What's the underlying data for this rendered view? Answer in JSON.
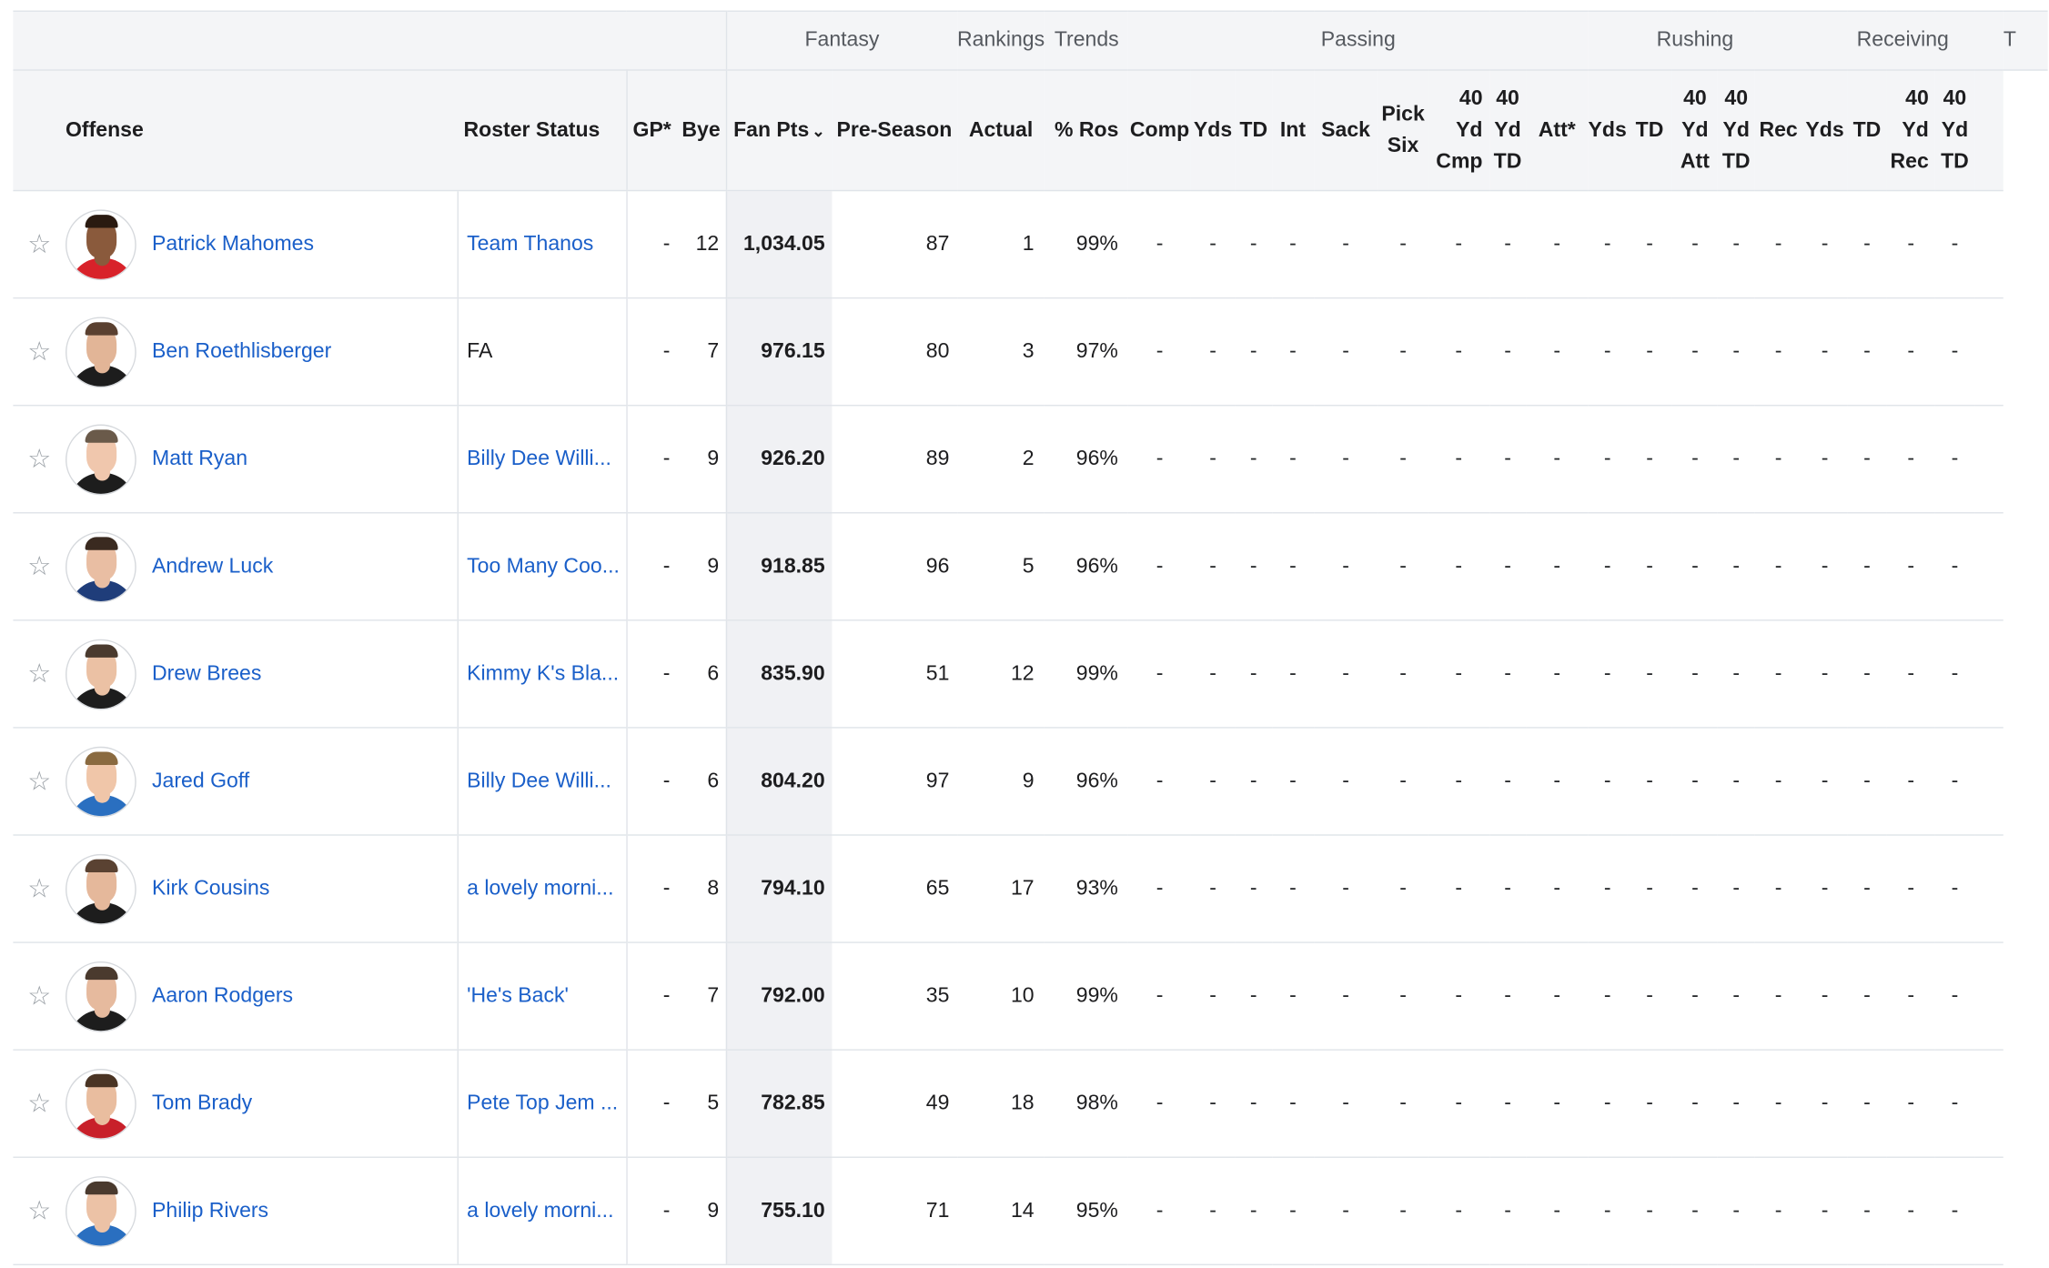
{
  "group_headers": {
    "fantasy": "Fantasy",
    "rankings": "Rankings",
    "trends": "Trends",
    "passing": "Passing",
    "rushing": "Rushing",
    "receiving": "Receiving",
    "extra": "T"
  },
  "columns": {
    "offense": "Offense",
    "roster_status": "Roster Status",
    "gp": "GP*",
    "bye": "Bye",
    "fan_pts": "Fan Pts",
    "pre_season": "Pre-Season",
    "actual": "Actual",
    "pct_ros": "% Ros",
    "pass_comp": "Comp",
    "pass_yds": "Yds",
    "pass_td": "TD",
    "pass_int": "Int",
    "pass_sack": "Sack",
    "pick_six_1": "Pick",
    "pick_six_2": "Six",
    "pass_40cmp_1": "40",
    "pass_40cmp_2": "Yd",
    "pass_40cmp_3": "Cmp",
    "pass_40td_1": "40",
    "pass_40td_2": "Yd",
    "pass_40td_3": "TD",
    "rush_att": "Att*",
    "rush_yds": "Yds",
    "rush_td": "TD",
    "rush_40att_1": "40",
    "rush_40att_2": "Yd",
    "rush_40att_3": "Att",
    "rush_40td_1": "40",
    "rush_40td_2": "Yd",
    "rush_40td_3": "TD",
    "rec_rec": "Rec",
    "rec_yds": "Yds",
    "rec_td": "TD",
    "rec_40rec_1": "40",
    "rec_40rec_2": "Yd",
    "rec_40rec_3": "Rec",
    "rec_40td_1": "40",
    "rec_40td_2": "Yd",
    "rec_40td_3": "TD"
  },
  "star_glyph": "☆",
  "sort_glyph": "⌄",
  "dash": "-",
  "players": [
    {
      "name": "Patrick Mahomes",
      "roster": "Team Thanos",
      "roster_link": true,
      "gp": "-",
      "bye": "12",
      "fan_pts": "1,034.05",
      "pre_season": "87",
      "actual": "1",
      "pct_ros": "99%",
      "skin": "#8a5a3c",
      "hair": "#2a1a10",
      "jersey": "#d8222a"
    },
    {
      "name": "Ben Roethlisberger",
      "roster": "FA",
      "roster_link": false,
      "gp": "-",
      "bye": "7",
      "fan_pts": "976.15",
      "pre_season": "80",
      "actual": "3",
      "pct_ros": "97%",
      "skin": "#e2b597",
      "hair": "#5a4030",
      "jersey": "#1d1d1d"
    },
    {
      "name": "Matt Ryan",
      "roster": "Billy Dee Willi...",
      "roster_link": true,
      "gp": "-",
      "bye": "9",
      "fan_pts": "926.20",
      "pre_season": "89",
      "actual": "2",
      "pct_ros": "96%",
      "skin": "#f0c7ad",
      "hair": "#6a5a4a",
      "jersey": "#1d1d1d"
    },
    {
      "name": "Andrew Luck",
      "roster": "Too Many Coo...",
      "roster_link": true,
      "gp": "-",
      "bye": "9",
      "fan_pts": "918.85",
      "pre_season": "96",
      "actual": "5",
      "pct_ros": "96%",
      "skin": "#e9bea3",
      "hair": "#3a2a20",
      "jersey": "#1f3d7a"
    },
    {
      "name": "Drew Brees",
      "roster": "Kimmy K's Bla...",
      "roster_link": true,
      "gp": "-",
      "bye": "6",
      "fan_pts": "835.90",
      "pre_season": "51",
      "actual": "12",
      "pct_ros": "99%",
      "skin": "#ebc1a4",
      "hair": "#4a3a2e",
      "jersey": "#1d1d1d"
    },
    {
      "name": "Jared Goff",
      "roster": "Billy Dee Willi...",
      "roster_link": true,
      "gp": "-",
      "bye": "6",
      "fan_pts": "804.20",
      "pre_season": "97",
      "actual": "9",
      "pct_ros": "96%",
      "skin": "#f0c6a9",
      "hair": "#8a6a40",
      "jersey": "#2a6fc0"
    },
    {
      "name": "Kirk Cousins",
      "roster": "a lovely morni...",
      "roster_link": true,
      "gp": "-",
      "bye": "8",
      "fan_pts": "794.10",
      "pre_season": "65",
      "actual": "17",
      "pct_ros": "93%",
      "skin": "#e5b89b",
      "hair": "#5a4232",
      "jersey": "#1d1d1d"
    },
    {
      "name": "Aaron Rodgers",
      "roster": "'He's Back'",
      "roster_link": true,
      "gp": "-",
      "bye": "7",
      "fan_pts": "792.00",
      "pre_season": "35",
      "actual": "10",
      "pct_ros": "99%",
      "skin": "#e6ba9e",
      "hair": "#4a3a2e",
      "jersey": "#1d1d1d"
    },
    {
      "name": "Tom Brady",
      "roster": "Pete Top Jem ...",
      "roster_link": true,
      "gp": "-",
      "bye": "5",
      "fan_pts": "782.85",
      "pre_season": "49",
      "actual": "18",
      "pct_ros": "98%",
      "skin": "#e9bd9f",
      "hair": "#4a3424",
      "jersey": "#c8202a"
    },
    {
      "name": "Philip Rivers",
      "roster": "a lovely morni...",
      "roster_link": true,
      "gp": "-",
      "bye": "9",
      "fan_pts": "755.10",
      "pre_season": "71",
      "actual": "14",
      "pct_ros": "95%",
      "skin": "#ecc2a6",
      "hair": "#4a3a2e",
      "jersey": "#2a6fc0"
    }
  ]
}
